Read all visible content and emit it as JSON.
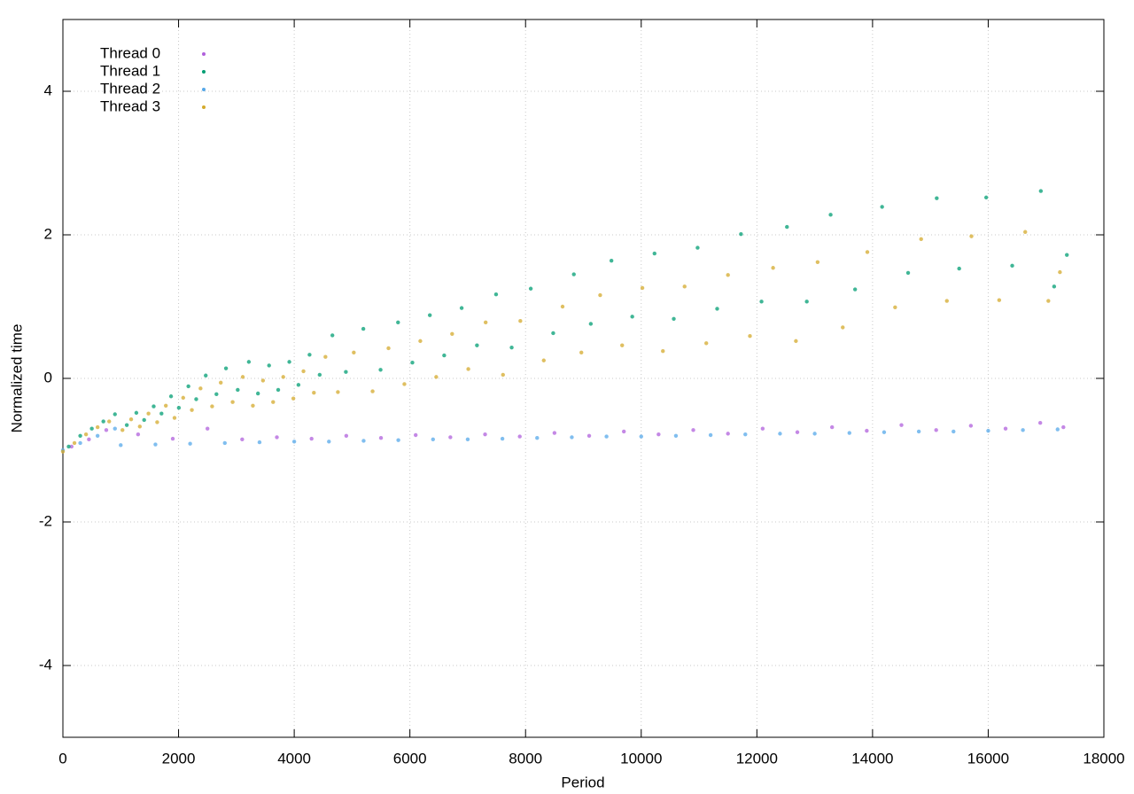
{
  "chart_data": {
    "type": "scatter",
    "x_label": "Period",
    "y_label": "Normalized time",
    "xlim": [
      0,
      18000
    ],
    "ylim": [
      -5,
      5
    ],
    "xticks": [
      0,
      2000,
      4000,
      6000,
      8000,
      10000,
      12000,
      14000,
      16000,
      18000
    ],
    "yticks": [
      -4,
      -2,
      0,
      2,
      4
    ],
    "grid": true,
    "legend": "top-left",
    "series": [
      {
        "name": "Thread 0",
        "color": "#b060dc",
        "x": [
          150,
          450,
          750,
          1300,
          1900,
          2500,
          3100,
          3700,
          4300,
          4900,
          5500,
          6100,
          6700,
          7300,
          7900,
          8500,
          9100,
          9700,
          10300,
          10900,
          11500,
          12100,
          12700,
          13300,
          13900,
          14500,
          15100,
          15700,
          16300,
          16900,
          17300
        ],
        "values": [
          -0.95,
          -0.85,
          -0.72,
          -0.78,
          -0.84,
          -0.7,
          -0.85,
          -0.82,
          -0.84,
          -0.8,
          -0.83,
          -0.79,
          -0.82,
          -0.78,
          -0.81,
          -0.76,
          -0.8,
          -0.74,
          -0.78,
          -0.72,
          -0.77,
          -0.7,
          -0.75,
          -0.68,
          -0.73,
          -0.65,
          -0.72,
          -0.66,
          -0.7,
          -0.62,
          -0.68
        ]
      },
      {
        "name": "Thread 1",
        "color": "#009e73",
        "x": [
          100,
          300,
          500,
          700,
          900,
          1105,
          1270,
          1405,
          1570,
          1705,
          1870,
          2005,
          2170,
          2305,
          2470,
          2655,
          2820,
          3023,
          3215,
          3373,
          3565,
          3723,
          3915,
          4073,
          4265,
          4440,
          4660,
          4893,
          5195,
          5493,
          5795,
          6043,
          6345,
          6593,
          6895,
          7160,
          7490,
          7760,
          8090,
          8478,
          8835,
          9128,
          9485,
          9845,
          10230,
          10563,
          10975,
          11313,
          11725,
          12080,
          12520,
          12863,
          13275,
          13698,
          14165,
          14615,
          15110,
          15498,
          15965,
          16415,
          16910,
          17140,
          17360
        ],
        "values": [
          -0.95,
          -0.8,
          -0.7,
          -0.6,
          -0.5,
          -0.65,
          -0.48,
          -0.58,
          -0.39,
          -0.49,
          -0.25,
          -0.41,
          -0.11,
          -0.29,
          0.04,
          -0.22,
          0.14,
          -0.16,
          0.23,
          -0.21,
          0.18,
          -0.16,
          0.23,
          -0.09,
          0.33,
          0.05,
          0.6,
          0.09,
          0.69,
          0.12,
          0.78,
          0.22,
          0.88,
          0.32,
          0.98,
          0.46,
          1.17,
          0.43,
          1.25,
          0.63,
          1.45,
          0.76,
          1.64,
          0.86,
          1.74,
          0.83,
          1.82,
          0.97,
          2.01,
          1.07,
          2.11,
          1.07,
          2.28,
          1.24,
          2.39,
          1.47,
          2.51,
          1.53,
          2.52,
          1.57,
          2.61,
          1.28,
          1.72
        ]
      },
      {
        "name": "Thread 2",
        "color": "#56a8e9",
        "x": [
          0,
          300,
          600,
          900,
          1000,
          1600,
          2200,
          2800,
          3400,
          4000,
          4600,
          5200,
          5800,
          6400,
          7000,
          7600,
          8200,
          8800,
          9400,
          10000,
          10600,
          11200,
          11800,
          12400,
          13000,
          13600,
          14200,
          14800,
          15400,
          16000,
          16600,
          17200
        ],
        "values": [
          -1.0,
          -0.9,
          -0.8,
          -0.7,
          -0.93,
          -0.92,
          -0.91,
          -0.9,
          -0.89,
          -0.88,
          -0.88,
          -0.87,
          -0.86,
          -0.85,
          -0.85,
          -0.84,
          -0.83,
          -0.82,
          -0.81,
          -0.81,
          -0.8,
          -0.79,
          -0.78,
          -0.77,
          -0.77,
          -0.76,
          -0.75,
          -0.74,
          -0.74,
          -0.73,
          -0.72,
          -0.71
        ]
      },
      {
        "name": "Thread 3",
        "color": "#d4aa2c",
        "x": [
          0,
          200,
          400,
          600,
          800,
          1030,
          1180,
          1330,
          1480,
          1630,
          1780,
          1930,
          2080,
          2230,
          2380,
          2580,
          2730,
          2935,
          3110,
          3285,
          3460,
          3635,
          3810,
          3985,
          4160,
          4340,
          4540,
          4755,
          5030,
          5355,
          5630,
          5905,
          6180,
          6455,
          6730,
          7010,
          7310,
          7610,
          7910,
          8315,
          8640,
          8965,
          9290,
          9670,
          10020,
          10375,
          10750,
          11125,
          11500,
          11880,
          12280,
          12675,
          13050,
          13485,
          13910,
          14390,
          14840,
          15285,
          15710,
          16190,
          16640,
          17040,
          17240
        ],
        "values": [
          -1.02,
          -0.9,
          -0.78,
          -0.68,
          -0.6,
          -0.72,
          -0.57,
          -0.67,
          -0.49,
          -0.61,
          -0.38,
          -0.55,
          -0.27,
          -0.44,
          -0.14,
          -0.39,
          -0.06,
          -0.33,
          0.02,
          -0.38,
          -0.03,
          -0.33,
          0.02,
          -0.28,
          0.1,
          -0.2,
          0.3,
          -0.19,
          0.36,
          -0.18,
          0.42,
          -0.08,
          0.52,
          0.02,
          0.62,
          0.13,
          0.78,
          0.05,
          0.8,
          0.25,
          1.0,
          0.36,
          1.16,
          0.46,
          1.26,
          0.38,
          1.28,
          0.49,
          1.44,
          0.59,
          1.54,
          0.52,
          1.62,
          0.71,
          1.76,
          0.99,
          1.94,
          1.08,
          1.98,
          1.09,
          2.04,
          1.08,
          1.48
        ]
      }
    ]
  }
}
